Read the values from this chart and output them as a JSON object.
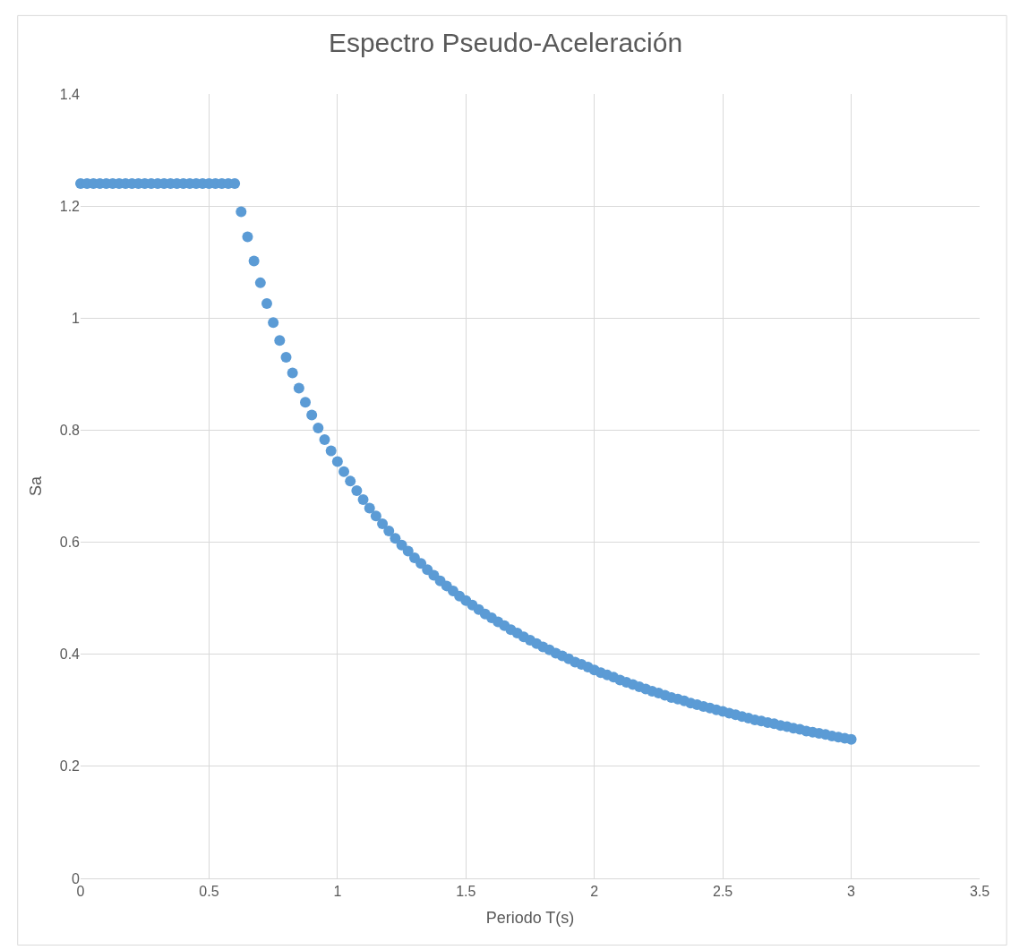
{
  "chart_data": {
    "type": "scatter",
    "title": "Espectro Pseudo-Aceleración",
    "xlabel": "Periodo T(s)",
    "ylabel": "Sa",
    "xlim": [
      0,
      3.5
    ],
    "xticks": [
      0,
      0.5,
      1,
      1.5,
      2,
      2.5,
      3,
      3.5
    ],
    "ylim": [
      0,
      1.4
    ],
    "yticks": [
      0,
      0.2,
      0.4,
      0.6,
      0.8,
      1,
      1.2,
      1.4
    ],
    "grid": true,
    "marker": "circle",
    "series": [
      {
        "color": "#5b9bd5",
        "x": [
          0,
          0.025,
          0.05,
          0.075,
          0.1,
          0.125,
          0.15,
          0.175,
          0.2,
          0.225,
          0.25,
          0.275,
          0.3,
          0.325,
          0.35,
          0.375,
          0.4,
          0.425,
          0.45,
          0.475,
          0.5,
          0.525,
          0.55,
          0.575,
          0.6,
          0.625,
          0.65,
          0.675,
          0.7,
          0.725,
          0.75,
          0.775,
          0.8,
          0.825,
          0.85,
          0.875,
          0.9,
          0.925,
          0.95,
          0.975,
          1.0,
          1.025,
          1.05,
          1.075,
          1.1,
          1.125,
          1.15,
          1.175,
          1.2,
          1.225,
          1.25,
          1.275,
          1.3,
          1.325,
          1.35,
          1.375,
          1.4,
          1.425,
          1.45,
          1.475,
          1.5,
          1.525,
          1.55,
          1.575,
          1.6,
          1.625,
          1.65,
          1.675,
          1.7,
          1.725,
          1.75,
          1.775,
          1.8,
          1.825,
          1.85,
          1.875,
          1.9,
          1.925,
          1.95,
          1.975,
          2.0,
          2.025,
          2.05,
          2.075,
          2.1,
          2.125,
          2.15,
          2.175,
          2.2,
          2.225,
          2.25,
          2.275,
          2.3,
          2.325,
          2.35,
          2.375,
          2.4,
          2.425,
          2.45,
          2.475,
          2.5,
          2.525,
          2.55,
          2.575,
          2.6,
          2.625,
          2.65,
          2.675,
          2.7,
          2.725,
          2.75,
          2.775,
          2.8,
          2.825,
          2.85,
          2.875,
          2.9,
          2.925,
          2.95,
          2.975,
          3.0
        ],
        "values": [
          1.24,
          1.24,
          1.24,
          1.24,
          1.24,
          1.24,
          1.24,
          1.24,
          1.24,
          1.24,
          1.24,
          1.24,
          1.24,
          1.24,
          1.24,
          1.24,
          1.24,
          1.24,
          1.24,
          1.24,
          1.24,
          1.24,
          1.24,
          1.24,
          1.24,
          1.19,
          1.145,
          1.102,
          1.063,
          1.026,
          0.992,
          0.96,
          0.93,
          0.902,
          0.875,
          0.85,
          0.827,
          0.804,
          0.783,
          0.763,
          0.744,
          0.726,
          0.709,
          0.692,
          0.676,
          0.661,
          0.647,
          0.633,
          0.62,
          0.607,
          0.595,
          0.584,
          0.572,
          0.562,
          0.551,
          0.541,
          0.531,
          0.522,
          0.513,
          0.504,
          0.496,
          0.488,
          0.48,
          0.472,
          0.465,
          0.458,
          0.451,
          0.444,
          0.438,
          0.431,
          0.425,
          0.419,
          0.413,
          0.408,
          0.402,
          0.397,
          0.392,
          0.386,
          0.382,
          0.377,
          0.372,
          0.367,
          0.363,
          0.359,
          0.354,
          0.35,
          0.346,
          0.342,
          0.338,
          0.334,
          0.331,
          0.327,
          0.323,
          0.32,
          0.317,
          0.313,
          0.31,
          0.307,
          0.304,
          0.301,
          0.298,
          0.295,
          0.292,
          0.289,
          0.286,
          0.283,
          0.281,
          0.278,
          0.276,
          0.273,
          0.271,
          0.268,
          0.266,
          0.263,
          0.261,
          0.259,
          0.257,
          0.254,
          0.252,
          0.25,
          0.248
        ]
      }
    ]
  }
}
